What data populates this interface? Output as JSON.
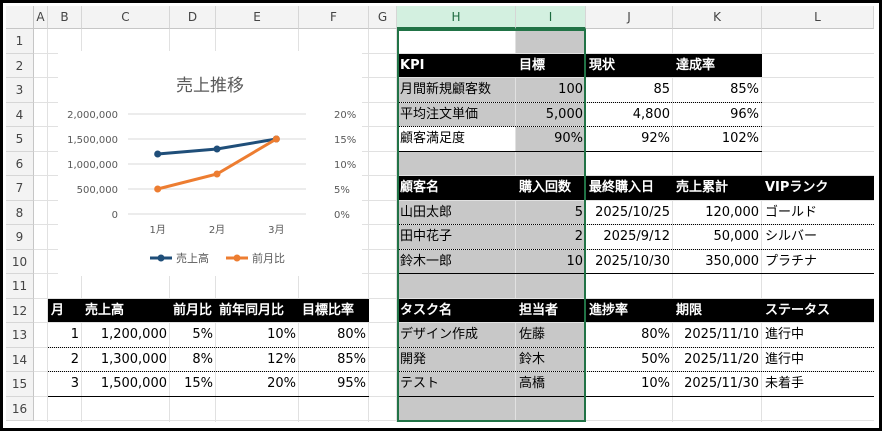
{
  "columns": [
    "A",
    "B",
    "C",
    "D",
    "E",
    "F",
    "G",
    "H",
    "I",
    "J",
    "K",
    "L"
  ],
  "rows": [
    "1",
    "2",
    "3",
    "4",
    "5",
    "6",
    "7",
    "8",
    "9",
    "10",
    "11",
    "12",
    "13",
    "14",
    "15",
    "16"
  ],
  "chart": {
    "title": "売上推移",
    "y_left_ticks": [
      "2,000,000",
      "1,500,000",
      "1,000,000",
      "500,000",
      "0"
    ],
    "y_right_ticks": [
      "20%",
      "15%",
      "10%",
      "5%",
      "0%"
    ],
    "x_ticks": [
      "1月",
      "2月",
      "3月"
    ],
    "legend": [
      "売上高",
      "前月比"
    ],
    "colors": {
      "sales": "#1f4e79",
      "mom": "#ed7d31"
    }
  },
  "chart_data": {
    "type": "line",
    "title": "売上推移",
    "categories": [
      "1月",
      "2月",
      "3月"
    ],
    "series": [
      {
        "name": "売上高",
        "axis": "left",
        "values": [
          1200000,
          1300000,
          1500000
        ]
      },
      {
        "name": "前月比",
        "axis": "right",
        "values": [
          5,
          8,
          15
        ]
      }
    ],
    "ylim_left": [
      0,
      2000000
    ],
    "ylim_right": [
      0,
      20
    ],
    "legend": "bottom",
    "grid": true
  },
  "sales_table": {
    "headers": [
      "月",
      "売上高",
      "前月比",
      "前年同月比",
      "目標比率"
    ],
    "rows": [
      [
        "1",
        "1,200,000",
        "5%",
        "10%",
        "80%"
      ],
      [
        "2",
        "1,300,000",
        "8%",
        "12%",
        "85%"
      ],
      [
        "3",
        "1,500,000",
        "15%",
        "20%",
        "95%"
      ]
    ]
  },
  "kpi_table": {
    "headers": [
      "KPI",
      "目標",
      "現状",
      "達成率"
    ],
    "rows": [
      [
        "月間新規顧客数",
        "100",
        "85",
        "85%"
      ],
      [
        "平均注文単価",
        "5,000",
        "4,800",
        "96%"
      ],
      [
        "顧客満足度",
        "90%",
        "92%",
        "102%"
      ]
    ]
  },
  "customer_table": {
    "headers": [
      "顧客名",
      "購入回数",
      "最終購入日",
      "売上累計",
      "VIPランク"
    ],
    "rows": [
      [
        "山田太郎",
        "5",
        "2025/10/25",
        "120,000",
        "ゴールド"
      ],
      [
        "田中花子",
        "2",
        "2025/9/12",
        "50,000",
        "シルバー"
      ],
      [
        "鈴木一郎",
        "10",
        "2025/10/30",
        "350,000",
        "プラチナ"
      ]
    ]
  },
  "task_table": {
    "headers": [
      "タスク名",
      "担当者",
      "進捗率",
      "期限",
      "ステータス"
    ],
    "rows": [
      [
        "デザイン作成",
        "佐藤",
        "80%",
        "2025/11/10",
        "進行中"
      ],
      [
        "開発",
        "鈴木",
        "50%",
        "2025/11/20",
        "進行中"
      ],
      [
        "テスト",
        "高橋",
        "10%",
        "2025/11/30",
        "未着手"
      ]
    ]
  }
}
